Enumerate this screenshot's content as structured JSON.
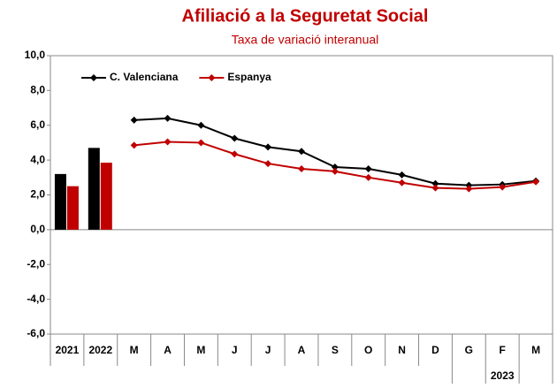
{
  "chart_data": {
    "type": "bar-line",
    "title": "Afiliació a la Seguretat Social",
    "subtitle": "Taxa de variació interanual",
    "bar_categories": [
      "2021",
      "2022"
    ],
    "categories": [
      "M",
      "A",
      "M",
      "J",
      "J",
      "A",
      "S",
      "O",
      "N",
      "D",
      "G",
      "F",
      "M"
    ],
    "group_label": "2023",
    "series": [
      {
        "name": "C. Valenciana",
        "color": "#000000",
        "bar_values": [
          3.2,
          4.7
        ],
        "values": [
          6.3,
          6.4,
          6.0,
          5.25,
          4.75,
          4.5,
          3.6,
          3.5,
          3.15,
          2.65,
          2.55,
          2.6,
          2.8
        ]
      },
      {
        "name": "Espanya",
        "color": "#c00000",
        "bar_values": [
          2.5,
          3.85
        ],
        "values": [
          4.85,
          5.05,
          5.0,
          4.35,
          3.8,
          3.5,
          3.35,
          3.0,
          2.7,
          2.4,
          2.35,
          2.45,
          2.75
        ]
      }
    ],
    "ylim": [
      -6,
      10
    ],
    "yticks": [
      {
        "value": -6,
        "label": "-6,0"
      },
      {
        "value": -4,
        "label": "-4,0"
      },
      {
        "value": -2,
        "label": "-2,0"
      },
      {
        "value": 0,
        "label": "0,0"
      },
      {
        "value": 2,
        "label": "2,0"
      },
      {
        "value": 4,
        "label": "4,0"
      },
      {
        "value": 6,
        "label": "6,0"
      },
      {
        "value": 8,
        "label": "8,0"
      },
      {
        "value": 10,
        "label": "10,0"
      }
    ],
    "legend": "top-left"
  }
}
